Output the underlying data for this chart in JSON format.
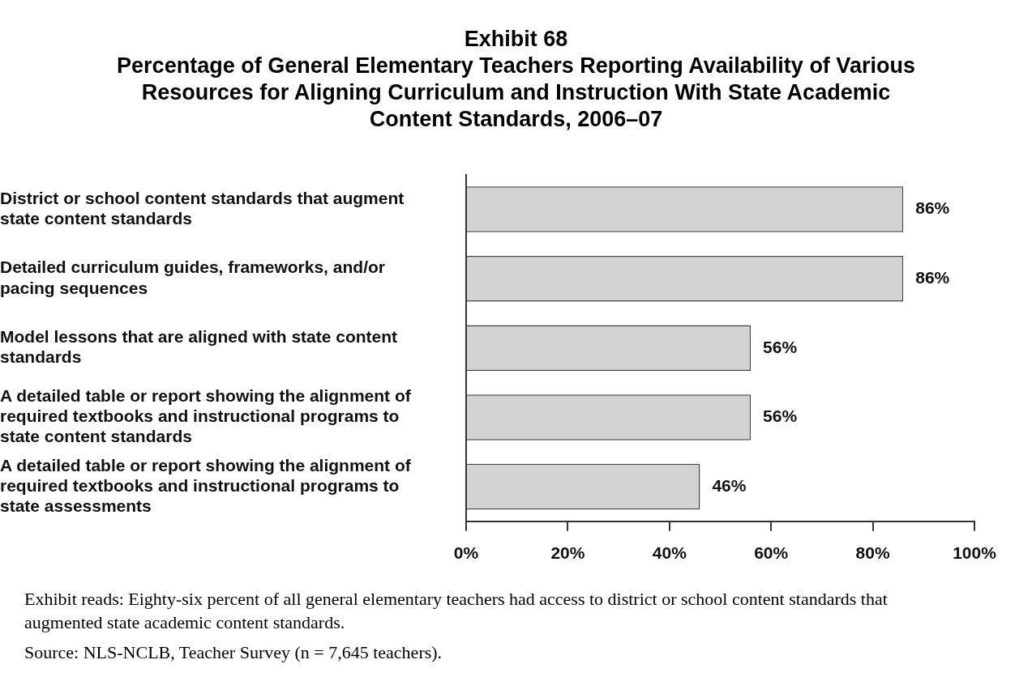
{
  "chart_data": {
    "type": "bar",
    "orientation": "horizontal",
    "title": "Exhibit 68",
    "subtitle": "Percentage of General Elementary Teachers Reporting Availability of Various Resources for Aligning Curriculum and Instruction With State Academic Content Standards, 2006–07",
    "categories": [
      "District or school content standards that augment state content standards",
      "Detailed curriculum guides, frameworks, and/or pacing sequences",
      "Model lessons that are aligned with state content standards",
      "A detailed table or report showing the alignment of required textbooks and instructional programs to state content standards",
      "A detailed table or report showing the alignment of required textbooks and instructional programs to state assessments"
    ],
    "values": [
      86,
      86,
      56,
      56,
      46
    ],
    "color": "#d3d3d3",
    "value_labels": [
      "86%",
      "86%",
      "56%",
      "56%",
      "46%"
    ],
    "xlim": [
      0,
      100
    ],
    "xticks": [
      {
        "value": 0,
        "label": "0%"
      },
      {
        "value": 20,
        "label": "20%"
      },
      {
        "value": 40,
        "label": "40%"
      },
      {
        "value": 60,
        "label": "60%"
      },
      {
        "value": 80,
        "label": "80%"
      },
      {
        "value": 100,
        "label": "100%"
      }
    ],
    "grid": false,
    "legend": false,
    "annotations": [
      "Exhibit reads:  Eighty-six percent of all general elementary teachers had access to district or school content standards that augmented state academic content standards.",
      "Source:  NLS-NCLB, Teacher Survey (n = 7,645 teachers)."
    ]
  }
}
